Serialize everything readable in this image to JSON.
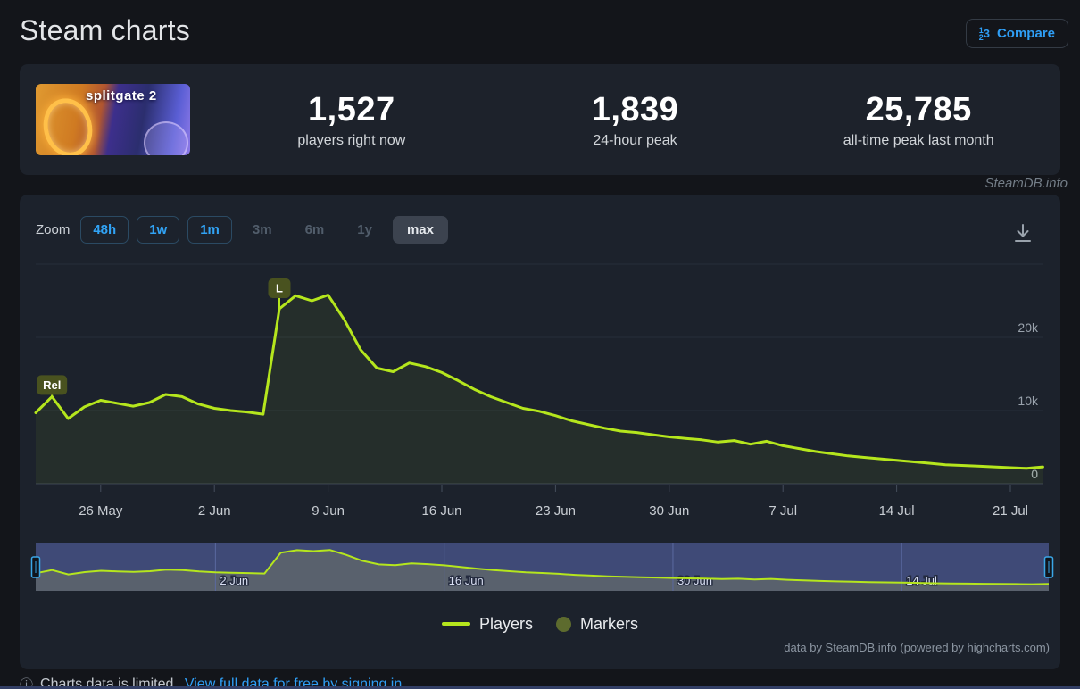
{
  "page": {
    "title": "Steam charts",
    "watermark": "SteamDB.info"
  },
  "compare": {
    "label": "Compare",
    "icon_numbers": [
      "1",
      "2",
      "3"
    ]
  },
  "stats": {
    "game_logo_text": "splitgate 2",
    "items": [
      {
        "value": "1,527",
        "label": "players right now"
      },
      {
        "value": "1,839",
        "label": "24-hour peak"
      },
      {
        "value": "25,785",
        "label": "all-time peak last month"
      }
    ]
  },
  "toolbar": {
    "zoom_label": "Zoom",
    "buttons": [
      {
        "label": "48h",
        "style": "outlined"
      },
      {
        "label": "1w",
        "style": "outlined"
      },
      {
        "label": "1m",
        "style": "outlined"
      },
      {
        "label": "3m",
        "style": "disabled"
      },
      {
        "label": "6m",
        "style": "disabled"
      },
      {
        "label": "1y",
        "style": "disabled"
      },
      {
        "label": "max",
        "style": "selected"
      }
    ]
  },
  "chart_data": {
    "type": "line",
    "series_name": "Players",
    "ylabel": "Players",
    "ylim": [
      0,
      30000
    ],
    "grid": true,
    "legend_position": "bottom",
    "y_grid": [
      {
        "value": 30000,
        "label": ""
      },
      {
        "value": 20000,
        "label": "20k"
      },
      {
        "value": 10000,
        "label": "10k"
      },
      {
        "value": 0,
        "label": "0"
      }
    ],
    "x_ticks": [
      {
        "day": 4,
        "label": "26 May"
      },
      {
        "day": 11,
        "label": "2 Jun"
      },
      {
        "day": 18,
        "label": "9 Jun"
      },
      {
        "day": 25,
        "label": "16 Jun"
      },
      {
        "day": 32,
        "label": "23 Jun"
      },
      {
        "day": 39,
        "label": "30 Jun"
      },
      {
        "day": 46,
        "label": "7 Jul"
      },
      {
        "day": 53,
        "label": "14 Jul"
      },
      {
        "day": 60,
        "label": "21 Jul"
      }
    ],
    "dates": [
      "22 May",
      "23 May",
      "24 May",
      "25 May",
      "26 May",
      "27 May",
      "28 May",
      "29 May",
      "30 May",
      "31 May",
      "1 Jun",
      "2 Jun",
      "3 Jun",
      "4 Jun",
      "5 Jun",
      "6 Jun",
      "7 Jun",
      "8 Jun",
      "9 Jun",
      "10 Jun",
      "11 Jun",
      "12 Jun",
      "13 Jun",
      "14 Jun",
      "15 Jun",
      "16 Jun",
      "17 Jun",
      "18 Jun",
      "19 Jun",
      "20 Jun",
      "21 Jun",
      "22 Jun",
      "23 Jun",
      "24 Jun",
      "25 Jun",
      "26 Jun",
      "27 Jun",
      "28 Jun",
      "29 Jun",
      "30 Jun",
      "1 Jul",
      "2 Jul",
      "3 Jul",
      "4 Jul",
      "5 Jul",
      "6 Jul",
      "7 Jul",
      "8 Jul",
      "9 Jul",
      "10 Jul",
      "11 Jul",
      "12 Jul",
      "13 Jul",
      "14 Jul",
      "15 Jul",
      "16 Jul",
      "17 Jul",
      "18 Jul",
      "19 Jul",
      "20 Jul",
      "21 Jul",
      "22 Jul",
      "23 Jul"
    ],
    "values": [
      9700,
      11900,
      8900,
      10500,
      11400,
      11000,
      10600,
      11100,
      12200,
      11900,
      10900,
      10300,
      10000,
      9800,
      9500,
      23900,
      25700,
      25000,
      25785,
      22400,
      18300,
      15800,
      15300,
      16500,
      16000,
      15200,
      14100,
      12900,
      11900,
      11100,
      10300,
      9900,
      9300,
      8600,
      8100,
      7600,
      7200,
      7000,
      6700,
      6400,
      6200,
      6000,
      5700,
      5900,
      5400,
      5800,
      5200,
      4800,
      4400,
      4100,
      3800,
      3600,
      3400,
      3200,
      3000,
      2800,
      2600,
      2500,
      2400,
      2300,
      2200,
      2100,
      2300
    ],
    "markers": [
      {
        "label": "Rel",
        "day": 1,
        "value": 11900
      },
      {
        "label": "L",
        "day": 15,
        "value": 23900
      }
    ],
    "navigator_labels": [
      {
        "day": 11,
        "label": "2 Jun"
      },
      {
        "day": 25,
        "label": "16 Jun"
      },
      {
        "day": 39,
        "label": "30 Jun"
      },
      {
        "day": 53,
        "label": "14 Jul"
      }
    ],
    "colors": {
      "line": "#b5e61d",
      "area": "rgba(181,230,29,0.06)",
      "marker_bg": "#49521f",
      "marker_text": "#ffffff",
      "legend_marker_dot": "#5d6b2e",
      "nav_mask": "#3f4a77",
      "nav_area": "#59616d",
      "nav_grid": "#5a69a0",
      "nav_handle": "#3aa7e8",
      "grid": "#262e3a",
      "axis_line": "#3b4454",
      "tick": "#444e5c",
      "x_label": "#c8cdd3",
      "y_label": "#99a2ac",
      "nav_label": "#d9dff2"
    }
  },
  "legend": {
    "players_label": "Players",
    "markers_label": "Markers"
  },
  "attribution": "data by SteamDB.info (powered by highcharts.com)",
  "footer": {
    "notice": "Charts data is limited.",
    "link": "View full data for free by signing in"
  }
}
